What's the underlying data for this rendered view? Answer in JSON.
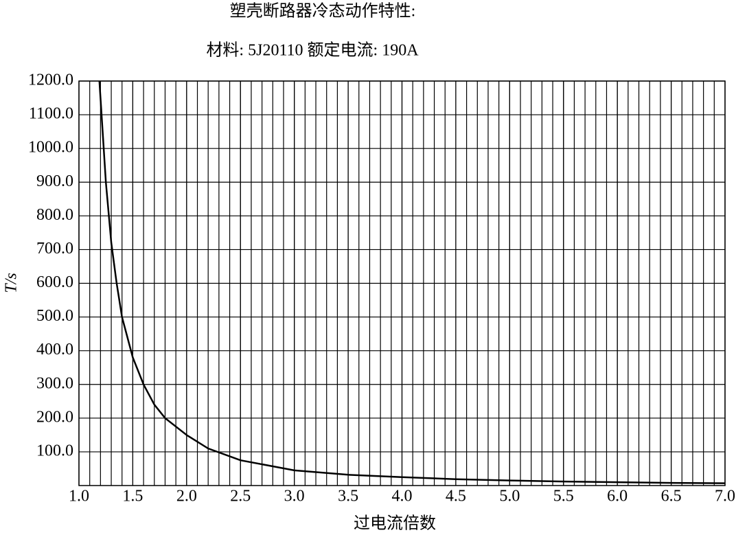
{
  "chart_data": {
    "type": "line",
    "title": "塑壳断路器冷态动作特性:",
    "subtitle": "材料: 5J20110 额定电流: 190A",
    "x_label": "过电流倍数",
    "y_label": "T/s",
    "series": [
      {
        "name": "T",
        "color": "#000000",
        "x": [
          1.19,
          1.25,
          1.3,
          1.35,
          1.4,
          1.5,
          1.6,
          1.7,
          1.8,
          2.0,
          2.2,
          2.5,
          3.0,
          3.5,
          4.0,
          4.5,
          5.0,
          5.5,
          6.0,
          6.5,
          7.0
        ],
        "values": [
          1200,
          900,
          720,
          600,
          500,
          380,
          300,
          240,
          200,
          150,
          110,
          75,
          45,
          32,
          25,
          19,
          15,
          12,
          10,
          8,
          7
        ]
      }
    ],
    "xlim": [
      1.0,
      7.0
    ],
    "xticks": [
      {
        "value": 1.0,
        "label": "1.0"
      },
      1.5,
      {
        "value": 2.0,
        "label": "2.0"
      },
      2.5,
      {
        "value": 3.0,
        "label": "3.0"
      },
      3.5,
      {
        "value": 4.0,
        "label": "4.0"
      },
      4.5,
      {
        "value": 5.0,
        "label": "5.0"
      },
      5.5,
      {
        "value": 6.0,
        "label": "6.0"
      },
      6.5,
      {
        "value": 7.0,
        "label": "7.0"
      }
    ],
    "xgrid_step": 0.1,
    "ylim": [
      0,
      1200
    ],
    "yticks": [
      {
        "value": 100,
        "label": "100.0"
      },
      {
        "value": 200,
        "label": "200.0"
      },
      {
        "value": 300,
        "label": "300.0"
      },
      {
        "value": 400,
        "label": "400.0"
      },
      {
        "value": 500,
        "label": "500.0"
      },
      {
        "value": 600,
        "label": "600.0"
      },
      {
        "value": 700,
        "label": "700.0"
      },
      {
        "value": 800,
        "label": "800.0"
      },
      {
        "value": 900,
        "label": "900.0"
      },
      {
        "value": 1000,
        "label": "1000.0"
      },
      {
        "value": 1100,
        "label": "1100.0"
      },
      {
        "value": 1200,
        "label": "1200.0"
      }
    ],
    "grid": true
  }
}
